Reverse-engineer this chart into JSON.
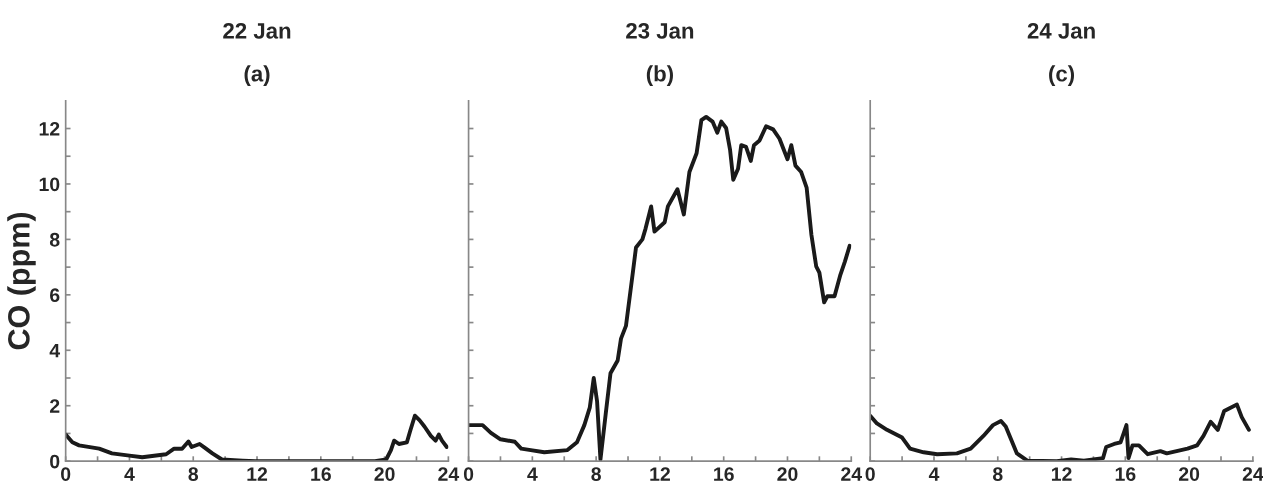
{
  "chart_data": [
    {
      "type": "line",
      "title": "22 Jan",
      "subtitle": "(a)",
      "ylabel": "CO (ppm)",
      "xlim": [
        0,
        24
      ],
      "ylim": [
        0,
        13
      ],
      "xticks": [
        0,
        {
          "value": 2,
          "label": null
        },
        4,
        {
          "value": 6,
          "label": null
        },
        8,
        {
          "value": 10,
          "label": null
        },
        12,
        {
          "value": 14,
          "label": null
        },
        16,
        {
          "value": 18,
          "label": null
        },
        20,
        {
          "value": 22,
          "label": null
        },
        24
      ],
      "yticks": [
        0,
        {
          "value": 1,
          "label": null
        },
        2,
        {
          "value": 3,
          "label": null
        },
        4,
        {
          "value": 5,
          "label": null
        },
        6,
        {
          "value": 7,
          "label": null
        },
        8,
        {
          "value": 9,
          "label": null
        },
        10,
        {
          "value": 11,
          "label": null
        },
        12
      ],
      "grid": false,
      "legend": false,
      "series": [
        {
          "color": "#1a1a1a",
          "x": [
            0,
            0.42,
            0.84,
            2.1,
            2.9,
            4.0,
            4.8,
            6.3,
            6.8,
            7.3,
            7.7,
            7.9,
            8.4,
            8.8,
            9.2,
            9.8,
            11.1,
            11.9,
            19.4,
            20.1,
            20.4,
            20.6,
            20.9,
            21.4,
            21.6,
            21.9,
            22.2,
            22.5,
            22.9,
            23.2,
            23.4,
            23.6,
            23.9
          ],
          "values": [
            0.96,
            0.68,
            0.57,
            0.45,
            0.28,
            0.2,
            0.14,
            0.25,
            0.45,
            0.45,
            0.71,
            0.51,
            0.62,
            0.45,
            0.28,
            0.06,
            0.02,
            0,
            0,
            0.06,
            0.4,
            0.74,
            0.62,
            0.68,
            1.08,
            1.64,
            1.47,
            1.25,
            0.91,
            0.74,
            0.96,
            0.74,
            0.51
          ]
        }
      ]
    },
    {
      "type": "line",
      "title": "23 Jan",
      "subtitle": "(b)",
      "xlim": [
        0,
        24
      ],
      "ylim": [
        0,
        13
      ],
      "tick_labels": "x",
      "xticks": [
        0,
        {
          "value": 2,
          "label": null
        },
        4,
        {
          "value": 6,
          "label": null
        },
        8,
        {
          "value": 10,
          "label": null
        },
        12,
        {
          "value": 14,
          "label": null
        },
        16,
        {
          "value": 18,
          "label": null
        },
        20,
        {
          "value": 22,
          "label": null
        },
        24
      ],
      "yticks": [
        0,
        {
          "value": 1,
          "label": null
        },
        2,
        {
          "value": 3,
          "label": null
        },
        4,
        {
          "value": 5,
          "label": null
        },
        6,
        {
          "value": 7,
          "label": null
        },
        8,
        {
          "value": 9,
          "label": null
        },
        10,
        {
          "value": 11,
          "label": null
        },
        12
      ],
      "grid": false,
      "legend": false,
      "series": [
        {
          "color": "#1a1a1a",
          "x": [
            0,
            0.88,
            1.4,
            2.0,
            2.9,
            3.3,
            3.9,
            4.75,
            6.2,
            6.8,
            7.26,
            7.6,
            7.85,
            8.06,
            8.27,
            8.6,
            8.9,
            9.35,
            9.56,
            9.87,
            10.3,
            10.5,
            10.9,
            11.1,
            11.45,
            11.66,
            12.3,
            12.5,
            13.1,
            13.5,
            13.85,
            14.3,
            14.6,
            14.9,
            15.3,
            15.6,
            15.85,
            16.15,
            16.4,
            16.6,
            16.9,
            17.1,
            17.4,
            17.7,
            17.9,
            18.25,
            18.66,
            19.1,
            19.5,
            20.0,
            20.24,
            20.5,
            20.86,
            21.2,
            21.5,
            21.8,
            22.0,
            22.3,
            22.5,
            22.95,
            23.3,
            23.6,
            23.9
          ],
          "values": [
            1.3,
            1.3,
            1.02,
            0.79,
            0.7,
            0.45,
            0.4,
            0.32,
            0.4,
            0.68,
            1.3,
            1.93,
            3.0,
            2.15,
            0.06,
            1.7,
            3.17,
            3.63,
            4.42,
            4.88,
            6.8,
            7.71,
            8.0,
            8.39,
            9.19,
            8.28,
            8.62,
            9.19,
            9.81,
            8.9,
            10.43,
            11.11,
            12.3,
            12.42,
            12.25,
            11.85,
            12.25,
            12.02,
            11.23,
            10.15,
            10.55,
            11.4,
            11.34,
            10.83,
            11.4,
            11.57,
            12.08,
            11.97,
            11.63,
            10.89,
            11.4,
            10.66,
            10.43,
            9.87,
            8.17,
            7.03,
            6.8,
            5.73,
            5.95,
            5.95,
            6.69,
            7.2,
            7.77
          ]
        }
      ]
    },
    {
      "type": "line",
      "title": "24 Jan",
      "subtitle": "(c)",
      "xlim": [
        0,
        24
      ],
      "ylim": [
        0,
        13
      ],
      "tick_labels": "x",
      "xticks": [
        0,
        {
          "value": 2,
          "label": null
        },
        4,
        {
          "value": 6,
          "label": null
        },
        8,
        {
          "value": 10,
          "label": null
        },
        12,
        {
          "value": 14,
          "label": null
        },
        16,
        {
          "value": 18,
          "label": null
        },
        20,
        {
          "value": 22,
          "label": null
        },
        24
      ],
      "yticks": [
        0,
        {
          "value": 1,
          "label": null
        },
        2,
        {
          "value": 3,
          "label": null
        },
        4,
        {
          "value": 5,
          "label": null
        },
        6,
        {
          "value": 7,
          "label": null
        },
        8,
        {
          "value": 9,
          "label": null
        },
        10,
        {
          "value": 11,
          "label": null
        },
        12
      ],
      "grid": false,
      "legend": false,
      "series": [
        {
          "color": "#1a1a1a",
          "x": [
            0,
            0.42,
            1.05,
            2.0,
            2.5,
            3.35,
            4.2,
            5.44,
            6.3,
            7.1,
            7.7,
            8.2,
            8.5,
            9.2,
            9.85,
            11.7,
            12.6,
            13.4,
            14.6,
            14.8,
            15.3,
            15.7,
            16.07,
            16.2,
            16.45,
            16.85,
            17.4,
            18.2,
            18.6,
            19.9,
            20.5,
            20.9,
            21.35,
            21.8,
            22.2,
            22.6,
            23.0,
            23.3,
            23.75
          ],
          "values": [
            1.64,
            1.36,
            1.13,
            0.85,
            0.45,
            0.32,
            0.25,
            0.28,
            0.45,
            0.91,
            1.3,
            1.45,
            1.25,
            0.28,
            0.02,
            0,
            0.06,
            0.02,
            0.11,
            0.51,
            0.62,
            0.68,
            1.3,
            0.11,
            0.57,
            0.57,
            0.25,
            0.36,
            0.28,
            0.45,
            0.57,
            0.91,
            1.42,
            1.13,
            1.81,
            1.93,
            2.04,
            1.59,
            1.13
          ]
        }
      ]
    }
  ]
}
